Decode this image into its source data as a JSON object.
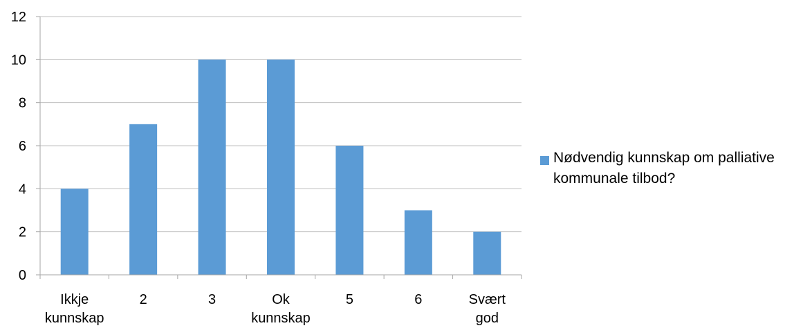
{
  "chart_data": {
    "type": "bar",
    "title": "",
    "xlabel": "",
    "ylabel": "",
    "categories": [
      "Ikkje\nkunnskap",
      "2",
      "3",
      "Ok\nkunnskap",
      "5",
      "6",
      "Svært\ngod"
    ],
    "series": [
      {
        "name": "Nødvendig kunnskap om palliative\nkommunale tilbod?",
        "values": [
          4,
          7,
          10,
          10,
          6,
          3,
          2
        ],
        "color": "#5B9BD5"
      }
    ],
    "ylim": [
      0,
      12
    ],
    "yticks": [
      0,
      2,
      4,
      6,
      8,
      10,
      12
    ],
    "grid": true,
    "legend_position": "right"
  }
}
